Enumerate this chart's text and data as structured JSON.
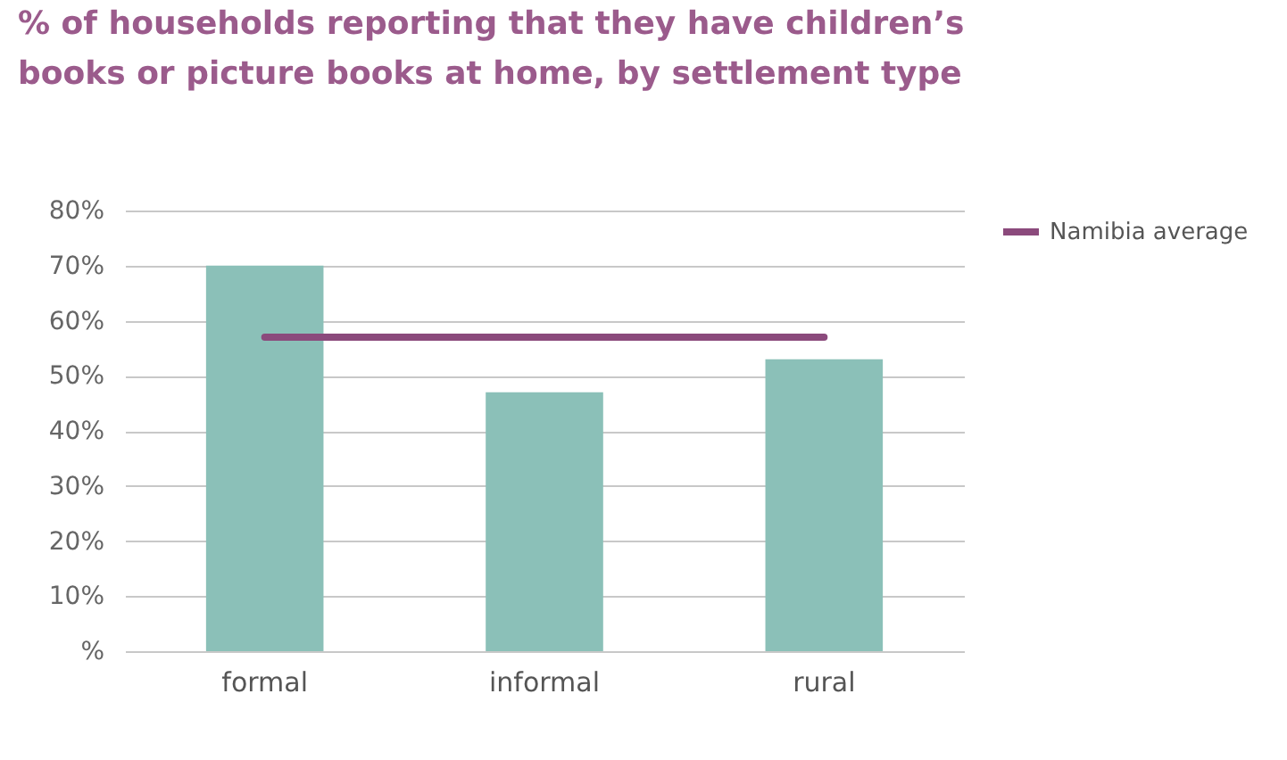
{
  "chart_data": {
    "type": "bar",
    "title": [
      "% of households reporting that they have children’s",
      "books or picture books at home, by settlement type"
    ],
    "categories": [
      "formal",
      "informal",
      "rural"
    ],
    "values": [
      70,
      47,
      53
    ],
    "color": "#8bc0b8",
    "ylim": [
      0,
      80
    ],
    "yticks": [
      {
        "value": 0,
        "label": "%"
      },
      {
        "value": 10,
        "label": "10%"
      },
      {
        "value": 20,
        "label": "20%"
      },
      {
        "value": 30,
        "label": "30%"
      },
      {
        "value": 40,
        "label": "40%"
      },
      {
        "value": 50,
        "label": "50%"
      },
      {
        "value": 60,
        "label": "60%"
      },
      {
        "value": 70,
        "label": "70%"
      },
      {
        "value": 80,
        "label": "80%"
      }
    ],
    "grid": "y",
    "legend": "right",
    "ref_lines": [
      {
        "axis": "y",
        "value": 57,
        "label": "Namibia average",
        "color": "#8b4a7c"
      }
    ]
  }
}
